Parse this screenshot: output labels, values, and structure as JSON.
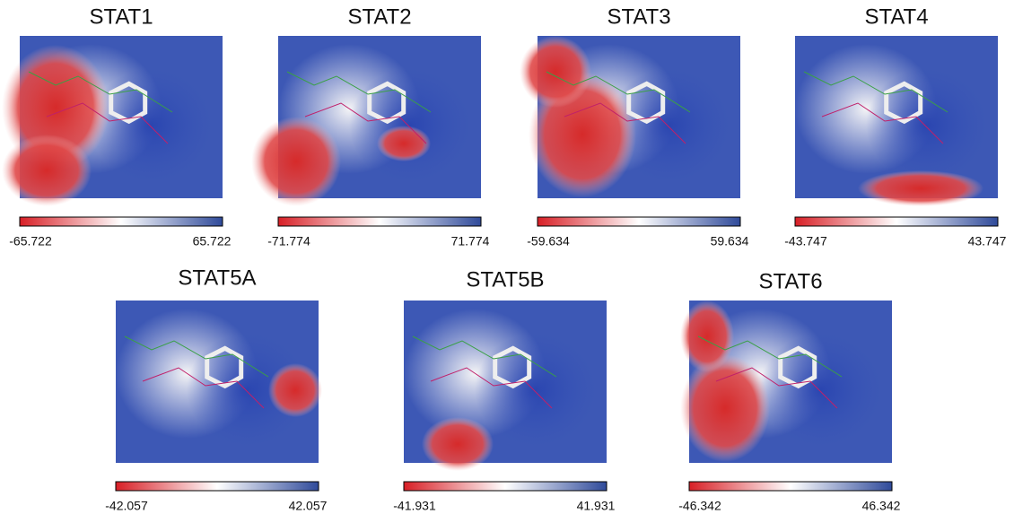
{
  "panels": [
    {
      "title": "STAT1",
      "min": "-65.722",
      "max": "65.722"
    },
    {
      "title": "STAT2",
      "min": "-71.774",
      "max": "71.774"
    },
    {
      "title": "STAT3",
      "min": "-59.634",
      "max": "59.634"
    },
    {
      "title": "STAT4",
      "min": "-43.747",
      "max": "43.747"
    },
    {
      "title": "STAT5A",
      "min": "-42.057",
      "max": "42.057"
    },
    {
      "title": "STAT5B",
      "min": "-41.931",
      "max": "41.931"
    },
    {
      "title": "STAT6",
      "min": "-46.342",
      "max": "46.342"
    }
  ]
}
